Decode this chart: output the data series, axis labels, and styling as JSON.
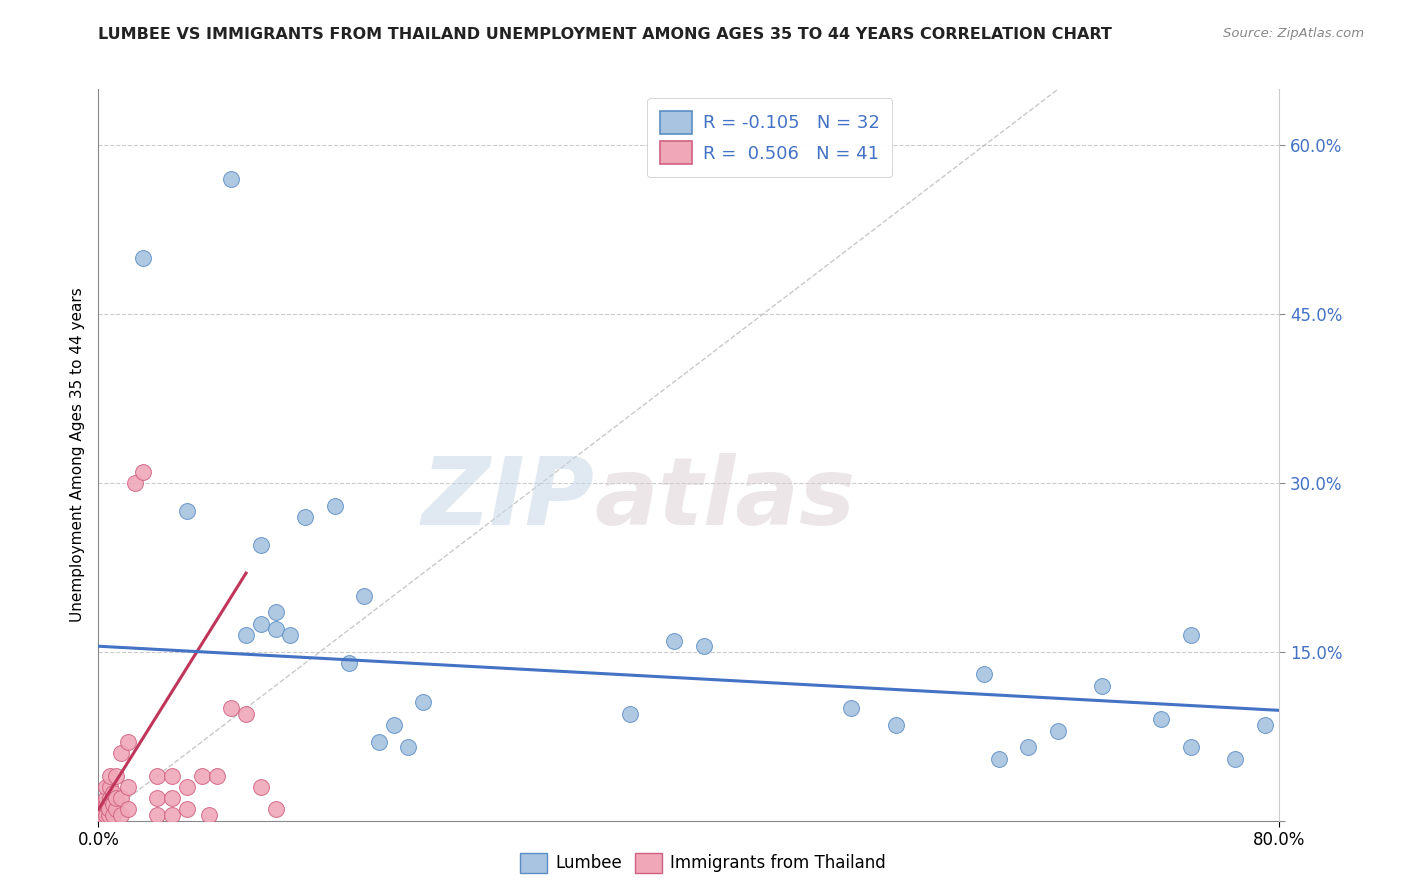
{
  "title": "LUMBEE VS IMMIGRANTS FROM THAILAND UNEMPLOYMENT AMONG AGES 35 TO 44 YEARS CORRELATION CHART",
  "source": "Source: ZipAtlas.com",
  "ylabel": "Unemployment Among Ages 35 to 44 years",
  "ytick_values": [
    0.0,
    0.15,
    0.3,
    0.45,
    0.6
  ],
  "ytick_labels_right": [
    "",
    "15.0%",
    "30.0%",
    "45.0%",
    "60.0%"
  ],
  "xlim": [
    0.0,
    0.8
  ],
  "ylim": [
    0.0,
    0.65
  ],
  "watermark_zip": "ZIP",
  "watermark_atlas": "atlas",
  "lumbee_color": "#a8c4e0",
  "thailand_color": "#f0a8b8",
  "lumbee_edge_color": "#5b8ec4",
  "thailand_edge_color": "#d06080",
  "lumbee_line_color": "#4472c4",
  "thailand_line_color": "#c0365a",
  "legend_label1": "R = -0.105   N = 32",
  "legend_label2": "R =  0.506   N = 41",
  "lumbee_scatter": [
    [
      0.03,
      0.5
    ],
    [
      0.06,
      0.275
    ],
    [
      0.09,
      0.57
    ],
    [
      0.1,
      0.165
    ],
    [
      0.11,
      0.175
    ],
    [
      0.11,
      0.245
    ],
    [
      0.12,
      0.185
    ],
    [
      0.12,
      0.17
    ],
    [
      0.13,
      0.165
    ],
    [
      0.14,
      0.27
    ],
    [
      0.16,
      0.28
    ],
    [
      0.17,
      0.14
    ],
    [
      0.18,
      0.2
    ],
    [
      0.19,
      0.07
    ],
    [
      0.2,
      0.085
    ],
    [
      0.21,
      0.065
    ],
    [
      0.22,
      0.105
    ],
    [
      0.36,
      0.095
    ],
    [
      0.39,
      0.16
    ],
    [
      0.41,
      0.155
    ],
    [
      0.51,
      0.1
    ],
    [
      0.54,
      0.085
    ],
    [
      0.6,
      0.13
    ],
    [
      0.61,
      0.055
    ],
    [
      0.63,
      0.065
    ],
    [
      0.65,
      0.08
    ],
    [
      0.68,
      0.12
    ],
    [
      0.72,
      0.09
    ],
    [
      0.74,
      0.165
    ],
    [
      0.74,
      0.065
    ],
    [
      0.77,
      0.055
    ],
    [
      0.79,
      0.085
    ]
  ],
  "thailand_scatter": [
    [
      0.003,
      0.005
    ],
    [
      0.003,
      0.01
    ],
    [
      0.003,
      0.015
    ],
    [
      0.005,
      0.005
    ],
    [
      0.005,
      0.015
    ],
    [
      0.005,
      0.02
    ],
    [
      0.005,
      0.03
    ],
    [
      0.007,
      0.005
    ],
    [
      0.007,
      0.01
    ],
    [
      0.008,
      0.02
    ],
    [
      0.008,
      0.03
    ],
    [
      0.008,
      0.04
    ],
    [
      0.01,
      0.005
    ],
    [
      0.01,
      0.015
    ],
    [
      0.01,
      0.025
    ],
    [
      0.012,
      0.01
    ],
    [
      0.012,
      0.02
    ],
    [
      0.012,
      0.04
    ],
    [
      0.015,
      0.005
    ],
    [
      0.015,
      0.02
    ],
    [
      0.015,
      0.06
    ],
    [
      0.02,
      0.01
    ],
    [
      0.02,
      0.03
    ],
    [
      0.02,
      0.07
    ],
    [
      0.025,
      0.3
    ],
    [
      0.03,
      0.31
    ],
    [
      0.04,
      0.005
    ],
    [
      0.04,
      0.02
    ],
    [
      0.04,
      0.04
    ],
    [
      0.05,
      0.005
    ],
    [
      0.05,
      0.02
    ],
    [
      0.05,
      0.04
    ],
    [
      0.06,
      0.01
    ],
    [
      0.06,
      0.03
    ],
    [
      0.07,
      0.04
    ],
    [
      0.075,
      0.005
    ],
    [
      0.08,
      0.04
    ],
    [
      0.09,
      0.1
    ],
    [
      0.1,
      0.095
    ],
    [
      0.11,
      0.03
    ],
    [
      0.12,
      0.01
    ]
  ],
  "lumbee_trendline": [
    [
      0.0,
      0.155
    ],
    [
      0.8,
      0.098
    ]
  ],
  "thailand_trendline": [
    [
      0.0,
      0.01
    ],
    [
      0.1,
      0.22
    ]
  ],
  "diag_line": [
    [
      0.0,
      0.0
    ],
    [
      0.65,
      0.65
    ]
  ]
}
